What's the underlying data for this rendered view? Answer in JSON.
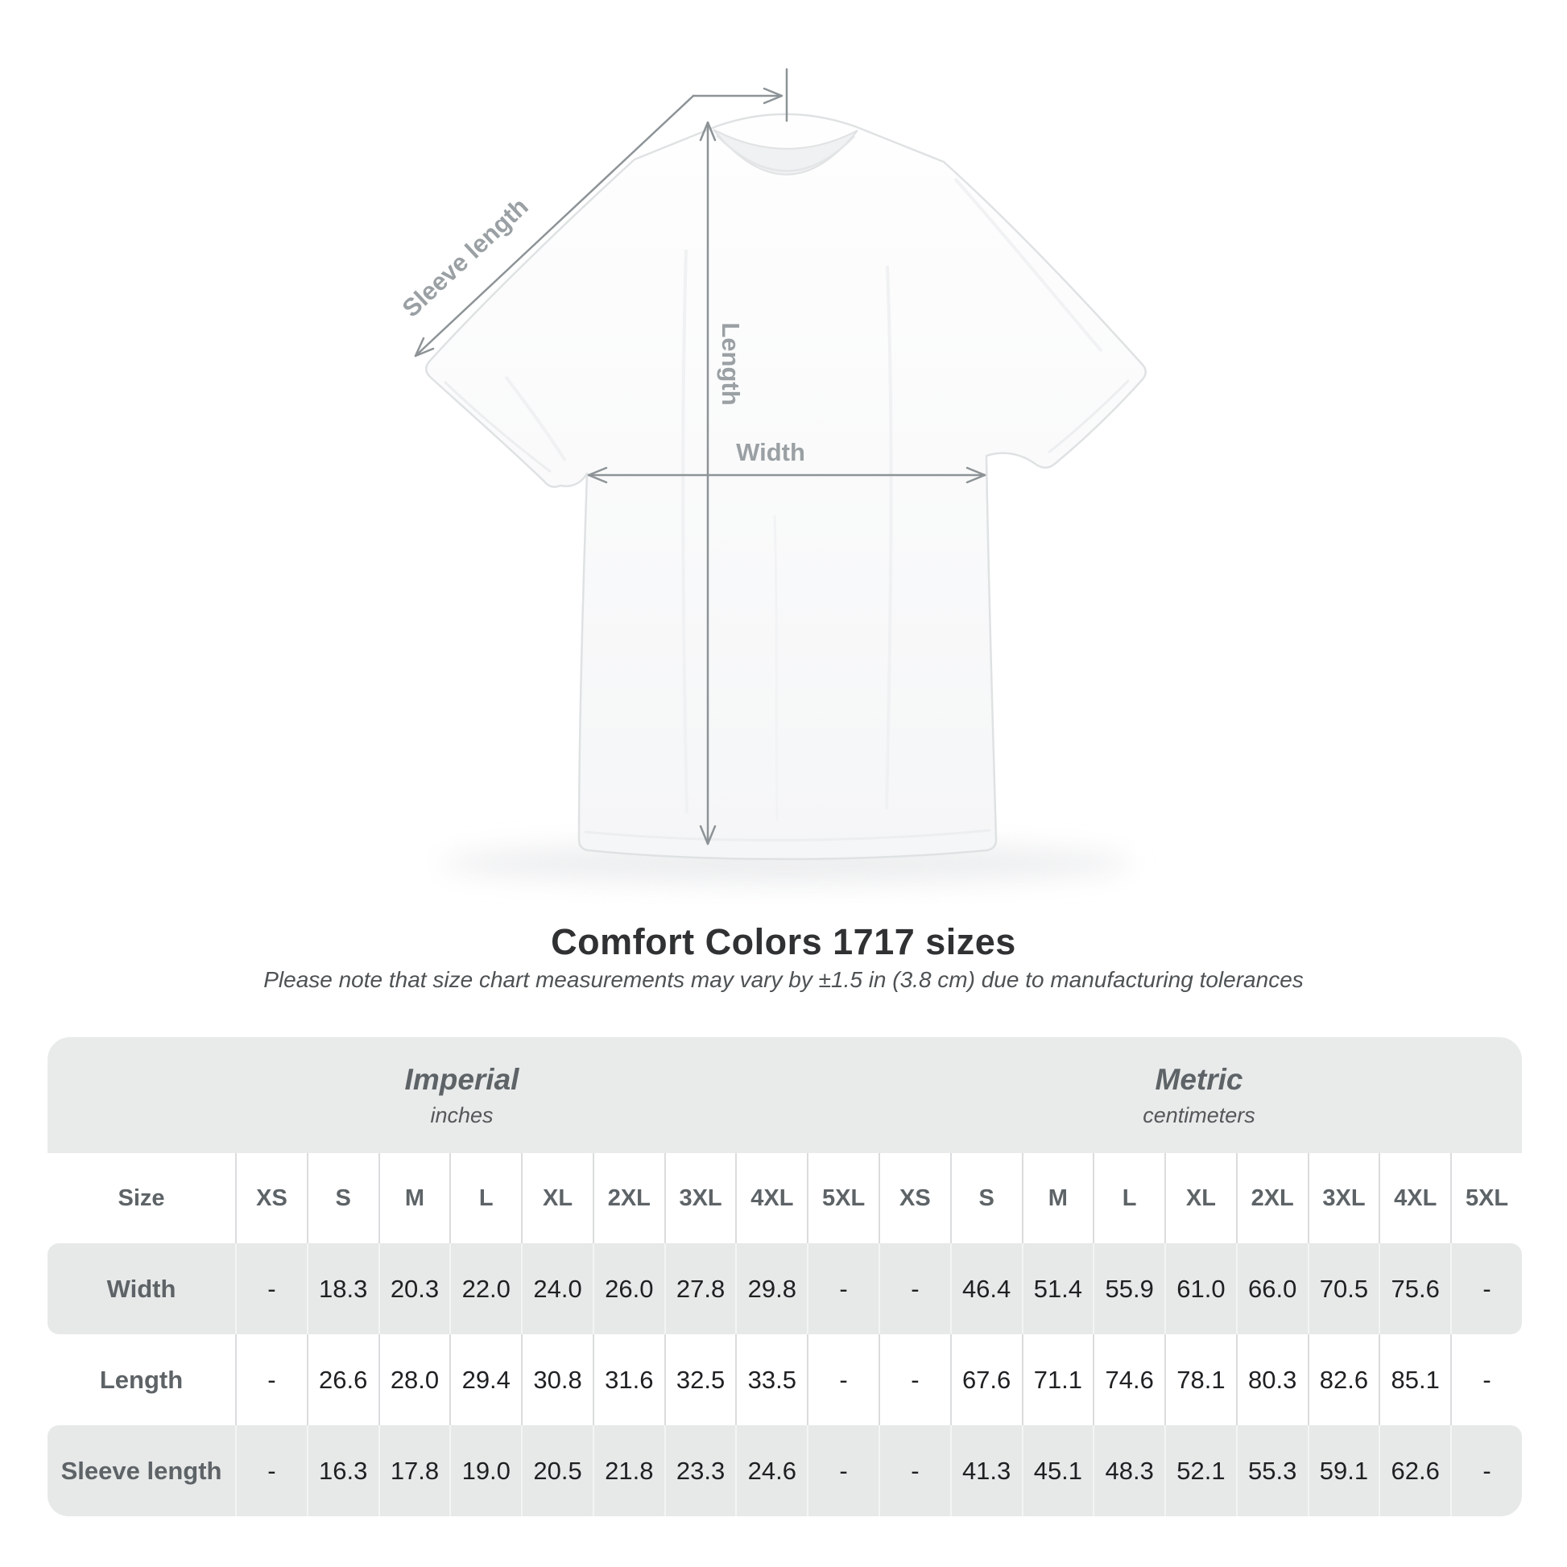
{
  "heading": {
    "title": "Comfort Colors 1717 sizes",
    "subtitle": "Please note that size chart measurements may vary by ±1.5 in (3.8 cm) due to manufacturing tolerances"
  },
  "diagram": {
    "sleeve_length_label": "Sleeve length",
    "length_label": "Length",
    "width_label": "Width"
  },
  "size_chart": {
    "unit_groups": [
      {
        "label": "Imperial",
        "unit": "inches"
      },
      {
        "label": "Metric",
        "unit": "centimeters"
      }
    ],
    "size_column_header": "Size",
    "sizes": [
      "XS",
      "S",
      "M",
      "L",
      "XL",
      "2XL",
      "3XL",
      "4XL",
      "5XL"
    ],
    "rows": [
      {
        "label": "Width",
        "imperial": [
          "-",
          "18.3",
          "20.3",
          "22.0",
          "24.0",
          "26.0",
          "27.8",
          "29.8",
          "-"
        ],
        "metric": [
          "-",
          "46.4",
          "51.4",
          "55.9",
          "61.0",
          "66.0",
          "70.5",
          "75.6",
          "-"
        ]
      },
      {
        "label": "Length",
        "imperial": [
          "-",
          "26.6",
          "28.0",
          "29.4",
          "30.8",
          "31.6",
          "32.5",
          "33.5",
          "-"
        ],
        "metric": [
          "-",
          "67.6",
          "71.1",
          "74.6",
          "78.1",
          "80.3",
          "82.6",
          "85.1",
          "-"
        ]
      },
      {
        "label": "Sleeve length",
        "imperial": [
          "-",
          "16.3",
          "17.8",
          "19.0",
          "20.5",
          "21.8",
          "23.3",
          "24.6",
          "-"
        ],
        "metric": [
          "-",
          "41.3",
          "45.1",
          "48.3",
          "52.1",
          "55.3",
          "59.1",
          "62.6",
          "-"
        ]
      }
    ]
  },
  "chart_data": {
    "type": "table",
    "title": "Comfort Colors 1717 sizes",
    "columns": [
      "Size",
      "XS",
      "S",
      "M",
      "L",
      "XL",
      "2XL",
      "3XL",
      "4XL",
      "5XL"
    ],
    "units": {
      "imperial": "inches",
      "metric": "centimeters"
    },
    "rows_imperial": [
      [
        "Width",
        null,
        18.3,
        20.3,
        22.0,
        24.0,
        26.0,
        27.8,
        29.8,
        null
      ],
      [
        "Length",
        null,
        26.6,
        28.0,
        29.4,
        30.8,
        31.6,
        32.5,
        33.5,
        null
      ],
      [
        "Sleeve length",
        null,
        16.3,
        17.8,
        19.0,
        20.5,
        21.8,
        23.3,
        24.6,
        null
      ]
    ],
    "rows_metric": [
      [
        "Width",
        null,
        46.4,
        51.4,
        55.9,
        61.0,
        66.0,
        70.5,
        75.6,
        null
      ],
      [
        "Length",
        null,
        67.6,
        71.1,
        74.6,
        78.1,
        80.3,
        82.6,
        85.1,
        null
      ],
      [
        "Sleeve length",
        null,
        41.3,
        45.1,
        48.3,
        52.1,
        55.3,
        59.1,
        62.6,
        null
      ]
    ]
  },
  "colors": {
    "page_background": "#ffffff",
    "panel_gray": "#e9eaea",
    "row_gray": "#e7e8e8",
    "separator_on_white": "#dbdcdd",
    "separator_on_gray": "#f3f4f4",
    "measure_line": "#8d9396",
    "measure_label": "#9aa0a3",
    "title_text": "#2f3133",
    "value_text": "#1e2022",
    "header_text": "#5d6366"
  }
}
